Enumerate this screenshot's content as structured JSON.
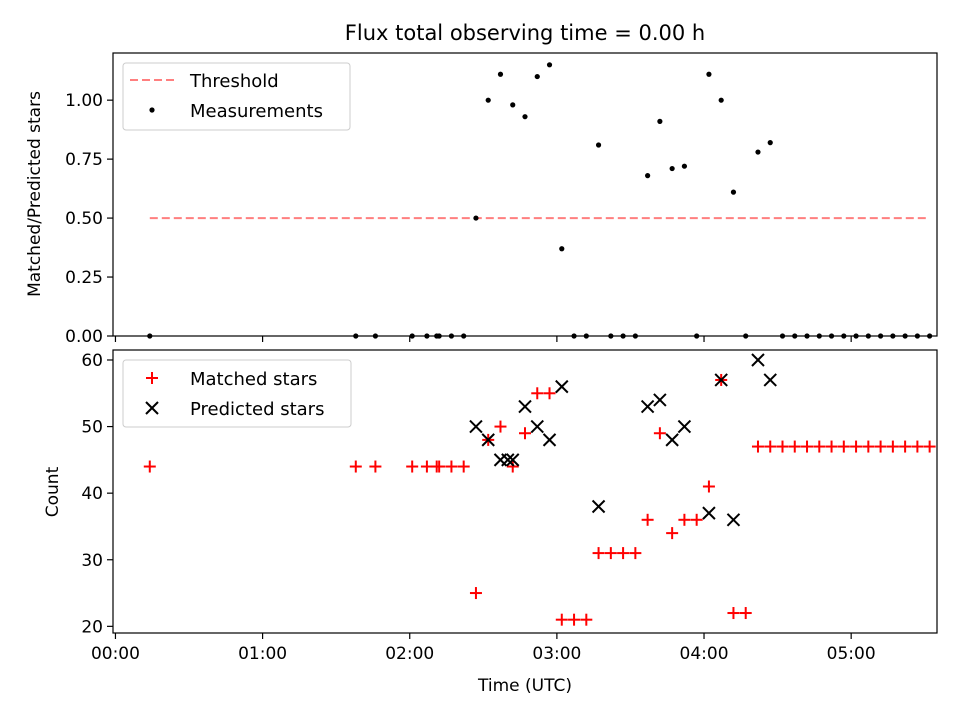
{
  "chart_data": [
    {
      "type": "scatter",
      "title": "Flux total observing time = 0.00 h",
      "xlabel": "",
      "ylabel": "Matched/Predicted stars",
      "xlim_minutes": [
        -1,
        335
      ],
      "ylim": [
        0,
        1.2
      ],
      "yticks": [
        0.0,
        0.25,
        0.5,
        0.75,
        1.0
      ],
      "ytick_labels": [
        "0.00",
        "0.25",
        "0.50",
        "0.75",
        "1.00"
      ],
      "grid": false,
      "legend_placement": "top-left",
      "threshold": {
        "name": "Threshold",
        "value": 0.5,
        "x_start": "00:14",
        "x_end": "05:32",
        "color": "#ff7f7f"
      },
      "series": [
        {
          "name": "Measurements",
          "color": "#000000",
          "points": [
            [
              "00:14",
              0
            ],
            [
              "01:38",
              0
            ],
            [
              "01:46",
              0
            ],
            [
              "02:01",
              0
            ],
            [
              "02:07",
              0
            ],
            [
              "02:11",
              0
            ],
            [
              "02:12",
              0
            ],
            [
              "02:17",
              0
            ],
            [
              "02:22",
              0
            ],
            [
              "02:27",
              0.5
            ],
            [
              "02:32",
              1.0
            ],
            [
              "02:37",
              1.11
            ],
            [
              "02:42",
              0.98
            ],
            [
              "02:47",
              0.93
            ],
            [
              "02:52",
              1.1
            ],
            [
              "02:57",
              1.15
            ],
            [
              "03:02",
              0.37
            ],
            [
              "03:07",
              0
            ],
            [
              "03:12",
              0
            ],
            [
              "03:17",
              0.81
            ],
            [
              "03:22",
              0
            ],
            [
              "03:27",
              0
            ],
            [
              "03:32",
              0
            ],
            [
              "03:37",
              0.68
            ],
            [
              "03:42",
              0.91
            ],
            [
              "03:47",
              0.71
            ],
            [
              "03:52",
              0.72
            ],
            [
              "03:57",
              0
            ],
            [
              "04:02",
              1.11
            ],
            [
              "04:07",
              1.0
            ],
            [
              "04:12",
              0.61
            ],
            [
              "04:17",
              0
            ],
            [
              "04:22",
              0.78
            ],
            [
              "04:27",
              0.82
            ],
            [
              "04:32",
              0
            ],
            [
              "04:37",
              0
            ],
            [
              "04:42",
              0
            ],
            [
              "04:47",
              0
            ],
            [
              "04:52",
              0
            ],
            [
              "04:57",
              0
            ],
            [
              "05:02",
              0
            ],
            [
              "05:07",
              0
            ],
            [
              "05:12",
              0
            ],
            [
              "05:17",
              0
            ],
            [
              "05:22",
              0
            ],
            [
              "05:27",
              0
            ],
            [
              "05:32",
              0
            ]
          ]
        }
      ]
    },
    {
      "type": "scatter",
      "title": "",
      "xlabel": "Time (UTC)",
      "ylabel": "Count",
      "xlim_minutes": [
        -1,
        335
      ],
      "ylim": [
        19,
        61.5
      ],
      "yticks": [
        20,
        30,
        40,
        50,
        60
      ],
      "ytick_labels": [
        "20",
        "30",
        "40",
        "50",
        "60"
      ],
      "xticks": [
        "00:00",
        "01:00",
        "02:00",
        "03:00",
        "04:00",
        "05:00"
      ],
      "grid": false,
      "legend_placement": "top-left",
      "series": [
        {
          "name": "Matched stars",
          "marker": "+",
          "color": "#ff0000",
          "points": [
            [
              "00:14",
              44
            ],
            [
              "01:38",
              44
            ],
            [
              "01:46",
              44
            ],
            [
              "02:01",
              44
            ],
            [
              "02:07",
              44
            ],
            [
              "02:11",
              44
            ],
            [
              "02:12",
              44
            ],
            [
              "02:17",
              44
            ],
            [
              "02:22",
              44
            ],
            [
              "02:27",
              25
            ],
            [
              "02:32",
              48
            ],
            [
              "02:37",
              50
            ],
            [
              "02:42",
              44
            ],
            [
              "02:47",
              49
            ],
            [
              "02:52",
              55
            ],
            [
              "02:57",
              55
            ],
            [
              "03:02",
              21
            ],
            [
              "03:07",
              21
            ],
            [
              "03:12",
              21
            ],
            [
              "03:17",
              31
            ],
            [
              "03:22",
              31
            ],
            [
              "03:27",
              31
            ],
            [
              "03:32",
              31
            ],
            [
              "03:37",
              36
            ],
            [
              "03:42",
              49
            ],
            [
              "03:47",
              34
            ],
            [
              "03:52",
              36
            ],
            [
              "03:57",
              36
            ],
            [
              "04:02",
              41
            ],
            [
              "04:07",
              57
            ],
            [
              "04:12",
              22
            ],
            [
              "04:17",
              22
            ],
            [
              "04:22",
              47
            ],
            [
              "04:27",
              47
            ],
            [
              "04:32",
              47
            ],
            [
              "04:37",
              47
            ],
            [
              "04:42",
              47
            ],
            [
              "04:47",
              47
            ],
            [
              "04:52",
              47
            ],
            [
              "04:57",
              47
            ],
            [
              "05:02",
              47
            ],
            [
              "05:07",
              47
            ],
            [
              "05:12",
              47
            ],
            [
              "05:17",
              47
            ],
            [
              "05:22",
              47
            ],
            [
              "05:27",
              47
            ],
            [
              "05:32",
              47
            ]
          ]
        },
        {
          "name": "Predicted stars",
          "marker": "x",
          "color": "#000000",
          "points": [
            [
              "02:27",
              50
            ],
            [
              "02:32",
              48
            ],
            [
              "02:37",
              45
            ],
            [
              "02:40",
              45
            ],
            [
              "02:42",
              45
            ],
            [
              "02:47",
              53
            ],
            [
              "02:52",
              50
            ],
            [
              "02:57",
              48
            ],
            [
              "03:02",
              56
            ],
            [
              "03:17",
              38
            ],
            [
              "03:37",
              53
            ],
            [
              "03:42",
              54
            ],
            [
              "03:47",
              48
            ],
            [
              "03:52",
              50
            ],
            [
              "04:02",
              37
            ],
            [
              "04:07",
              57
            ],
            [
              "04:12",
              36
            ],
            [
              "04:22",
              60
            ],
            [
              "04:27",
              57
            ]
          ]
        }
      ]
    }
  ]
}
